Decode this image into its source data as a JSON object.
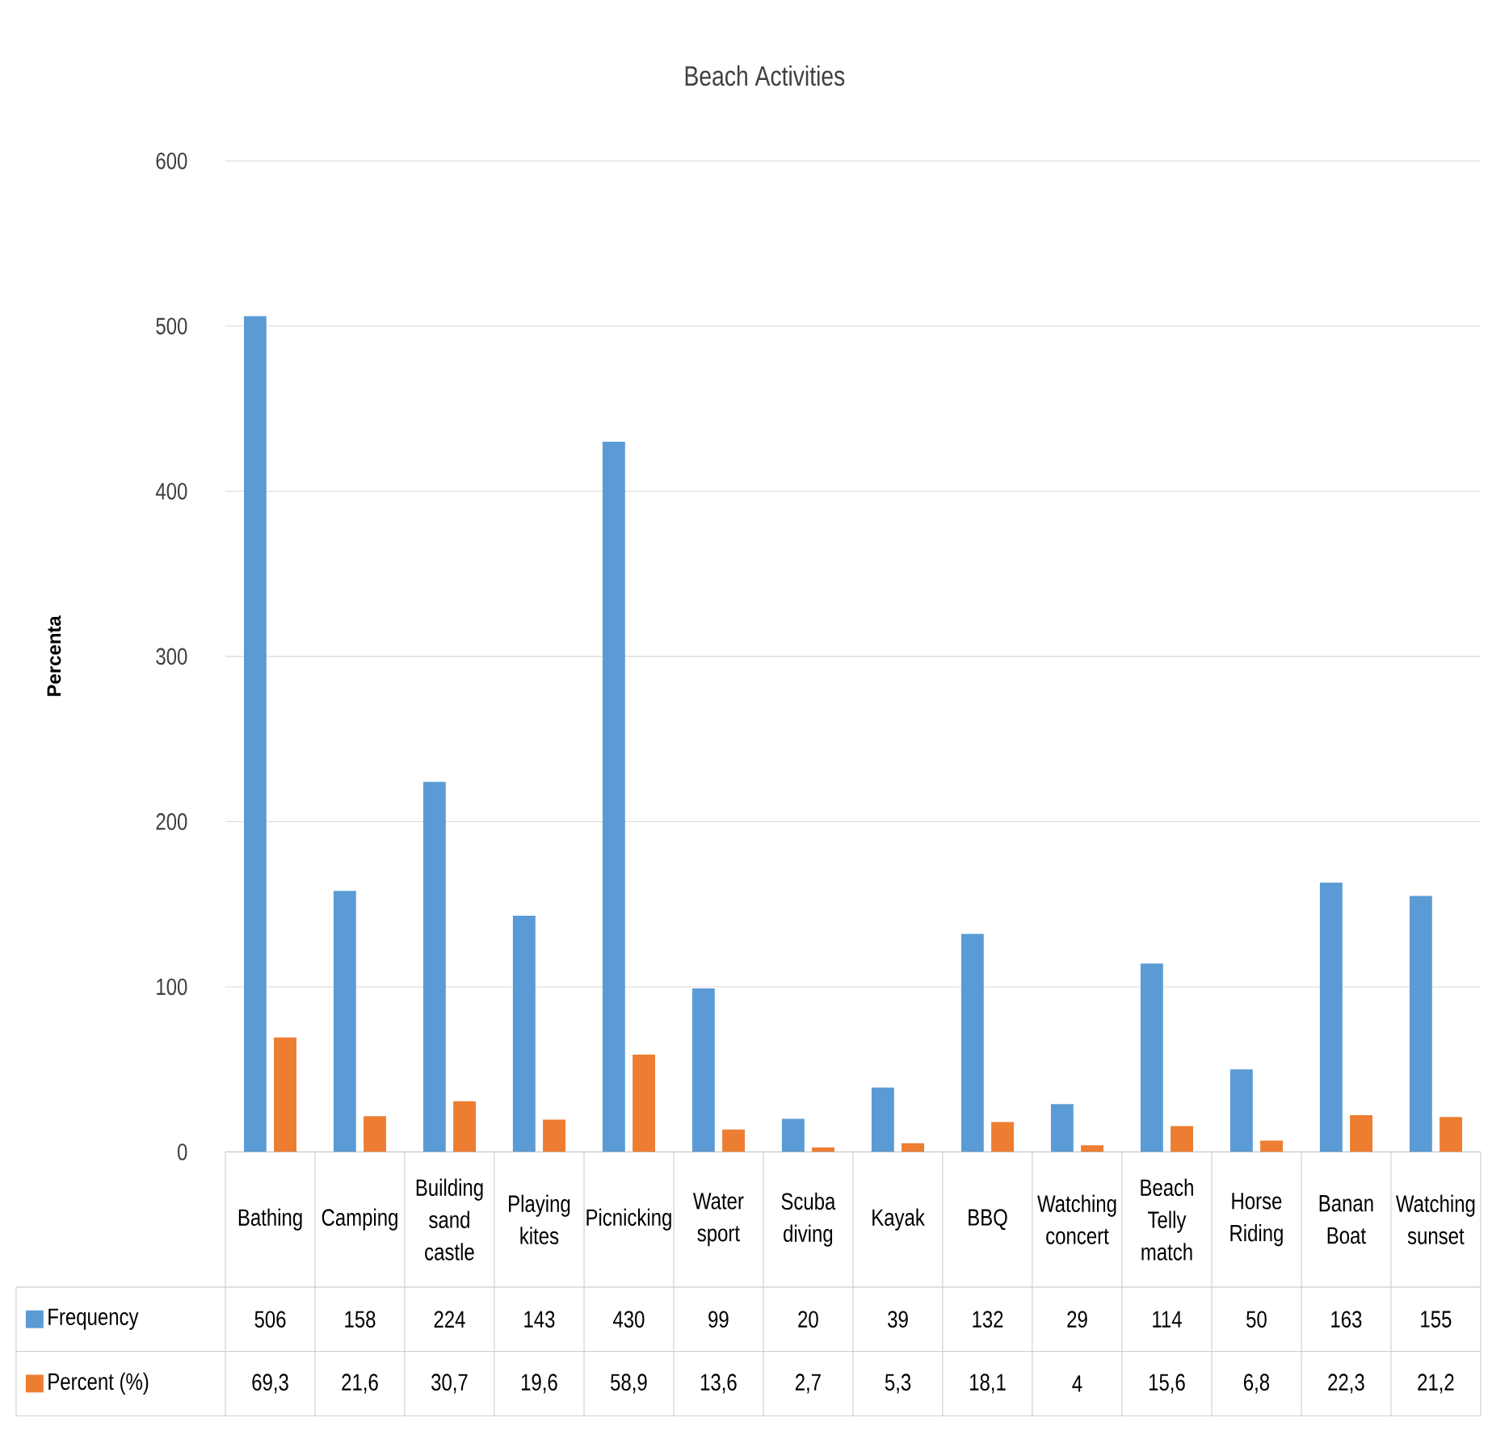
{
  "chart_data": {
    "type": "bar",
    "title": "Beach Activities",
    "ylabel": "Percenta",
    "categories": [
      "Bathing",
      "Camping",
      "Building sand castle",
      "Playing kites",
      "Picnicking",
      "Water sport",
      "Scuba diving",
      "Kayak",
      "BBQ",
      "Watching concert",
      "Beach Telly match",
      "Horse Riding",
      "Banan Boat",
      "Watching sunset"
    ],
    "series": [
      {
        "name": "Frequency",
        "color": "#5b9bd5",
        "values": [
          506,
          158,
          224,
          143,
          430,
          99,
          20,
          39,
          132,
          29,
          114,
          50,
          163,
          155
        ],
        "value_labels": [
          "506",
          "158",
          "224",
          "143",
          "430",
          "99",
          "20",
          "39",
          "132",
          "29",
          "114",
          "50",
          "163",
          "155"
        ]
      },
      {
        "name": "Percent (%)",
        "color": "#ed7d31",
        "values": [
          69.3,
          21.6,
          30.7,
          19.6,
          58.9,
          13.6,
          2.7,
          5.3,
          18.1,
          4,
          15.6,
          6.8,
          22.3,
          21.2
        ],
        "value_labels": [
          "69,3",
          "21,6",
          "30,7",
          "19,6",
          "58,9",
          "13,6",
          "2,7",
          "5,3",
          "18,1",
          "4",
          "15,6",
          "6,8",
          "22,3",
          "21,2"
        ]
      }
    ],
    "ylim": [
      0,
      600
    ],
    "yticks": [
      0,
      100,
      200,
      300,
      400,
      500,
      600
    ],
    "grid": "y",
    "legend": "bottom"
  }
}
